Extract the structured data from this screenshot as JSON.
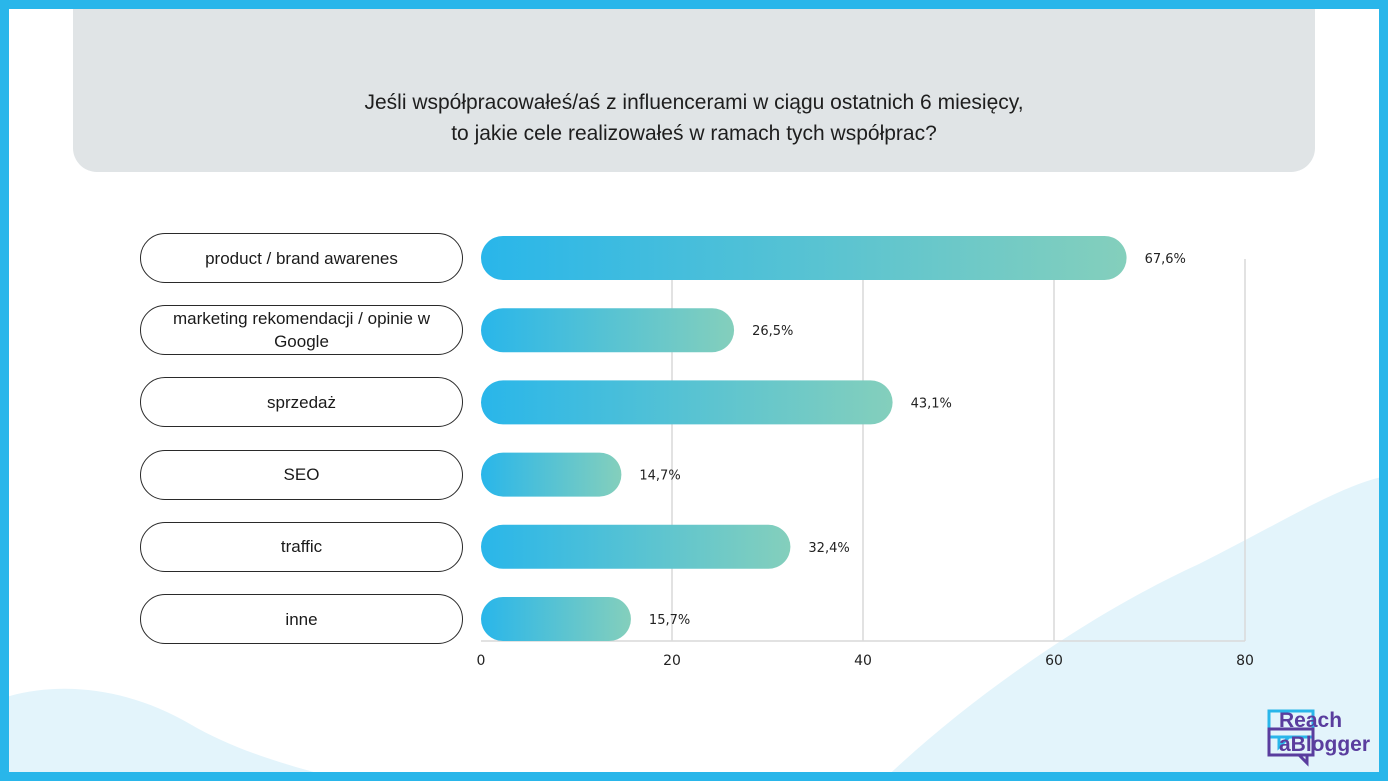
{
  "title": {
    "line1": "Jeśli współpracowałeś/aś z influencerami w ciągu ostatnich 6 miesięcy,",
    "line2": "to jakie cele realizowałeś w ramach tych współprac?"
  },
  "colors": {
    "frame": "#29b6ea",
    "header_bg": "#e0e4e6",
    "bar_start": "#29b6ea",
    "bar_end": "#84cfbc",
    "logo": "#5a3d9e"
  },
  "logo": {
    "line1": "Reach",
    "line2": "aBlogger",
    "icon": "speech-bubbles-icon"
  },
  "chart_data": {
    "type": "bar",
    "orientation": "horizontal",
    "categories": [
      "product / brand awarenes",
      "marketing rekomendacji / opinie w Google",
      "sprzedaż",
      "SEO",
      "traffic",
      "inne"
    ],
    "values": [
      67.6,
      26.5,
      43.1,
      14.7,
      32.4,
      15.7
    ],
    "value_labels": [
      "67,6%",
      "26,5%",
      "43,1%",
      "14,7%",
      "32,4%",
      "15,7%"
    ],
    "xlim": [
      0,
      80
    ],
    "xticks": [
      "0",
      "20",
      "40",
      "60",
      "80"
    ],
    "grid": true,
    "legend": "none"
  }
}
